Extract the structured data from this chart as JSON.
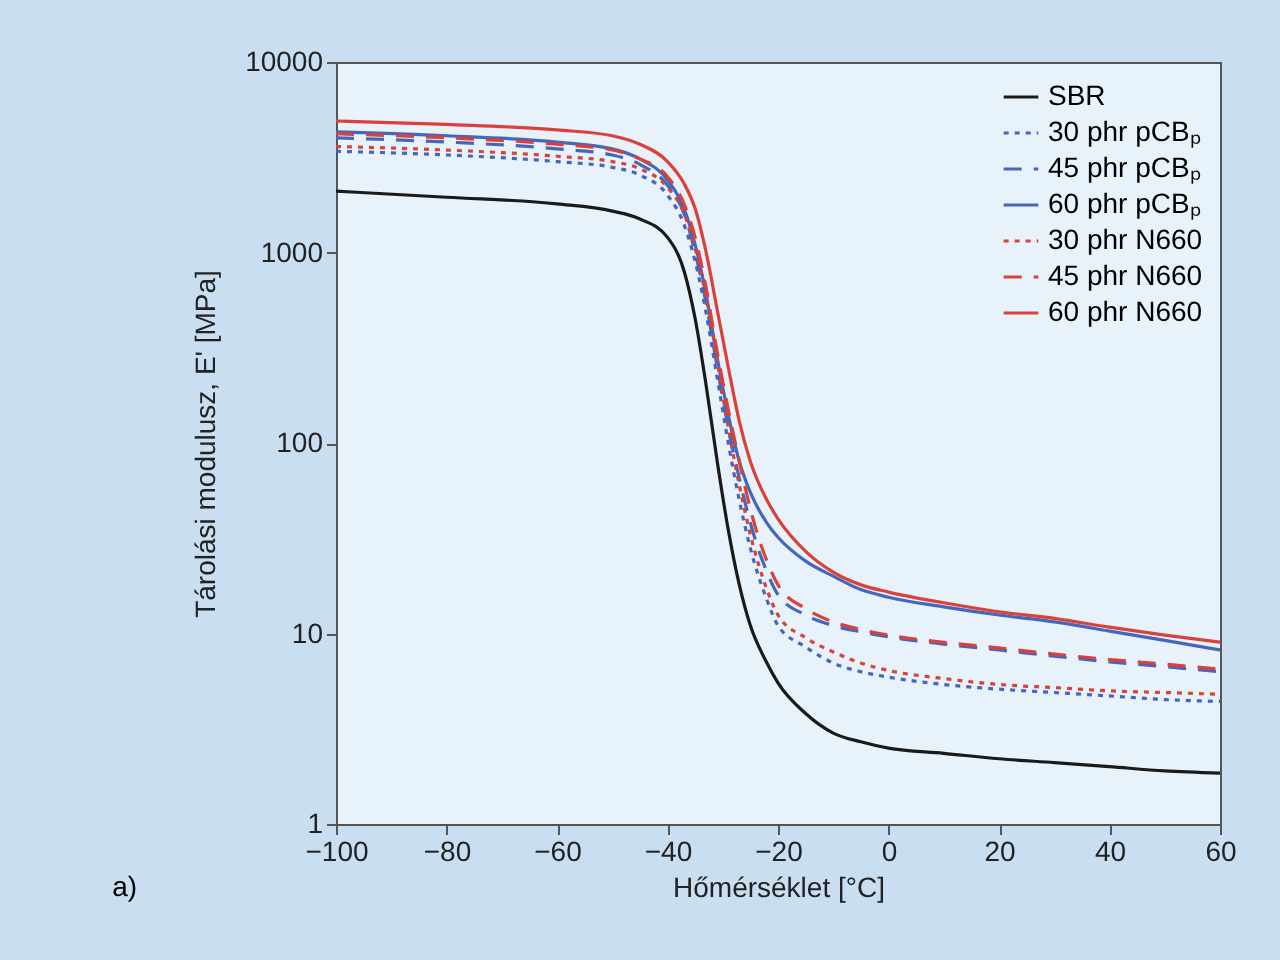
{
  "chart_data": {
    "type": "line",
    "xlabel": "Hőmérséklet [°C]",
    "ylabel": "Tárolási modulusz, E' [MPa]",
    "annotations": [
      "a)"
    ],
    "log": "y",
    "legend": "top right",
    "grid": false,
    "x": [
      -100,
      -80,
      -60,
      -50,
      -45,
      -40,
      -37,
      -35,
      -33,
      -31,
      -29,
      -27,
      -25,
      -22,
      -20,
      -15,
      -10,
      -5,
      0,
      10,
      20,
      30,
      40,
      50,
      60
    ],
    "xlim": [
      -100,
      60
    ],
    "xticks": [
      {
        "value": -100,
        "label": "−100"
      },
      {
        "value": -80,
        "label": "−80"
      },
      {
        "value": -60,
        "label": "−60"
      },
      {
        "value": -40,
        "label": "−40"
      },
      {
        "value": -20,
        "label": "−20"
      },
      0,
      20,
      40,
      60
    ],
    "ylim": [
      1,
      10000
    ],
    "yticks": [
      1,
      10,
      100,
      1000,
      10000
    ],
    "series": [
      {
        "name": "SBR",
        "color": "#1a1a1a",
        "line_style": "solid",
        "values": [
          2100,
          1950,
          1800,
          1650,
          1500,
          1200,
          800,
          450,
          200,
          80,
          35,
          18,
          11,
          7,
          5.5,
          3.8,
          3,
          2.7,
          2.5,
          2.35,
          2.2,
          2.1,
          2,
          1.9,
          1.85
        ]
      },
      {
        "name": "30 phr pCBₚ",
        "color": "#4466bb",
        "line_style": "dotted",
        "values": [
          3400,
          3250,
          3000,
          2800,
          2550,
          2000,
          1400,
          900,
          480,
          220,
          100,
          50,
          28,
          15,
          11,
          8.5,
          7,
          6.3,
          5.9,
          5.4,
          5.1,
          4.9,
          4.7,
          4.5,
          4.4
        ]
      },
      {
        "name": "45 phr pCBₚ",
        "color": "#4466bb",
        "line_style": "dashed",
        "values": [
          4000,
          3800,
          3500,
          3250,
          2900,
          2250,
          1600,
          1000,
          540,
          250,
          120,
          65,
          38,
          21,
          16,
          12.5,
          11,
          10.2,
          9.6,
          8.8,
          8.2,
          7.6,
          7.1,
          6.7,
          6.3
        ]
      },
      {
        "name": "60 phr pCBₚ",
        "color": "#4466bb",
        "line_style": "solid",
        "values": [
          4300,
          4100,
          3800,
          3500,
          3100,
          2400,
          1700,
          1100,
          600,
          280,
          140,
          80,
          55,
          38,
          32,
          24,
          20,
          17,
          15.5,
          13.8,
          12.5,
          11.5,
          10.3,
          9.2,
          8.2
        ]
      },
      {
        "name": "30 phr N660",
        "color": "#d9413a",
        "line_style": "dotted",
        "values": [
          3600,
          3450,
          3200,
          3000,
          2750,
          2200,
          1600,
          1050,
          580,
          270,
          120,
          60,
          33,
          17,
          12.5,
          9.5,
          8,
          7,
          6.4,
          5.8,
          5.4,
          5.2,
          5,
          4.9,
          4.8
        ]
      },
      {
        "name": "45 phr N660",
        "color": "#d9413a",
        "line_style": "dashed",
        "values": [
          4200,
          4000,
          3700,
          3450,
          3100,
          2500,
          1800,
          1200,
          650,
          300,
          150,
          80,
          45,
          24,
          18,
          13.5,
          11.5,
          10.5,
          9.8,
          9,
          8.4,
          7.8,
          7.3,
          6.9,
          6.5
        ]
      },
      {
        "name": "60 phr N660",
        "color": "#d9413a",
        "line_style": "solid",
        "values": [
          4900,
          4700,
          4400,
          4100,
          3700,
          3000,
          2300,
          1700,
          1000,
          500,
          250,
          130,
          80,
          50,
          40,
          27,
          21,
          18,
          16.5,
          14.5,
          13,
          12,
          10.8,
          9.8,
          9
        ]
      }
    ]
  }
}
